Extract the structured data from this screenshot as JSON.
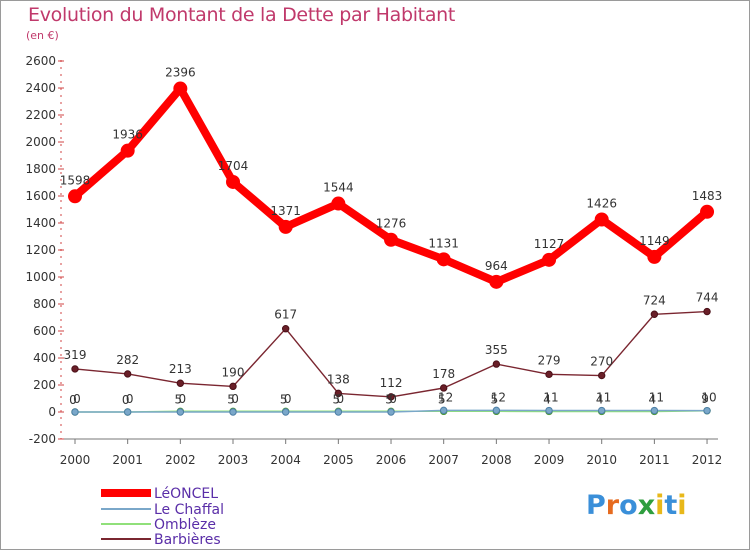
{
  "title": "Evolution du Montant de la Dette par Habitant",
  "subtitle": "(en €)",
  "logo": {
    "text": "Proxiti",
    "colors": [
      "#3a8fd9",
      "#e66b1f",
      "#3a8fd9",
      "#2e9e3e",
      "#e8b81a",
      "#3a8fd9",
      "#e8b81a"
    ]
  },
  "chart_data": {
    "type": "line",
    "title": "Evolution du Montant de la Dette par Habitant",
    "ylabel": "(en €)",
    "xlabel": "",
    "categories": [
      "2000",
      "2001",
      "2002",
      "2003",
      "2004",
      "2005",
      "2006",
      "2007",
      "2008",
      "2009",
      "2010",
      "2011",
      "2012"
    ],
    "ylim": [
      -200,
      2600
    ],
    "yticks": [
      -200,
      0,
      200,
      400,
      600,
      800,
      1000,
      1200,
      1400,
      1600,
      1800,
      2000,
      2200,
      2400,
      2600
    ],
    "series": [
      {
        "name": "LéONCEL",
        "color": "#ff0000",
        "values": [
          1598,
          1936,
          2396,
          1704,
          1371,
          1544,
          1276,
          1131,
          964,
          1127,
          1426,
          1149,
          1483
        ],
        "labels": [
          "1598",
          "1936",
          "2396",
          "1704",
          "1371",
          "1544",
          "1276",
          "1131",
          "964",
          "1127",
          "1426",
          "1149",
          "1483"
        ]
      },
      {
        "name": "Le Chaffal",
        "color": "#7aa7c9",
        "values": [
          0,
          0,
          0,
          0,
          0,
          0,
          0,
          12,
          12,
          11,
          11,
          11,
          10
        ],
        "labels": [
          "0",
          "0",
          "0",
          "0",
          "0",
          "0",
          "0",
          "12",
          "12",
          "11",
          "11",
          "11",
          "10"
        ]
      },
      {
        "name": "Omblèze",
        "color": "#90e07a",
        "values": [
          0,
          0,
          5,
          5,
          5,
          5,
          5,
          5,
          5,
          4,
          4,
          4,
          9
        ],
        "labels": [
          "0",
          "0",
          "5",
          "5",
          "5",
          "5",
          "5",
          "5",
          "5",
          "4",
          "4",
          "4",
          "9"
        ]
      },
      {
        "name": "Barbières",
        "color": "#7a2630",
        "values": [
          319,
          282,
          213,
          190,
          617,
          138,
          112,
          178,
          355,
          279,
          270,
          724,
          744
        ],
        "labels": [
          "319",
          "282",
          "213",
          "190",
          "617",
          "138",
          "112",
          "178",
          "355",
          "279",
          "270",
          "724",
          "744"
        ]
      }
    ],
    "legend_position": "bottom-left",
    "grid": false
  }
}
